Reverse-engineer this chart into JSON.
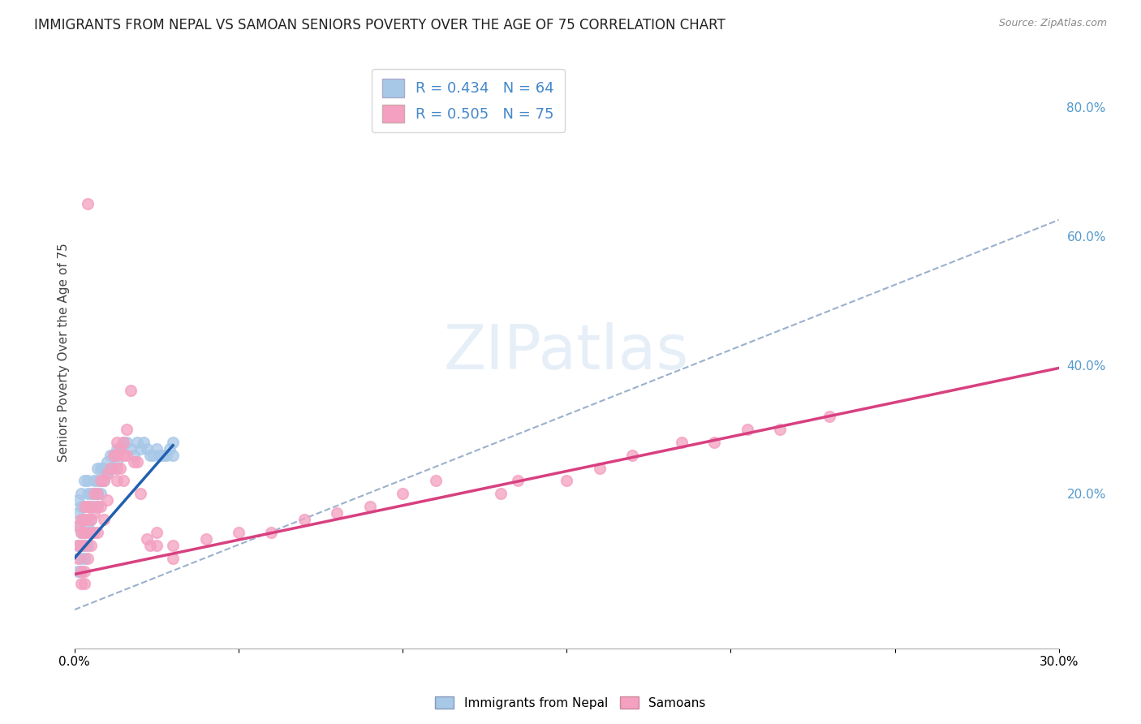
{
  "title": "IMMIGRANTS FROM NEPAL VS SAMOAN SENIORS POVERTY OVER THE AGE OF 75 CORRELATION CHART",
  "source": "Source: ZipAtlas.com",
  "ylabel": "Seniors Poverty Over the Age of 75",
  "xlim": [
    0.0,
    0.3
  ],
  "ylim": [
    -0.04,
    0.88
  ],
  "xtick_positions": [
    0.0,
    0.05,
    0.1,
    0.15,
    0.2,
    0.25,
    0.3
  ],
  "xticklabels": [
    "0.0%",
    "",
    "",
    "",
    "",
    "",
    "30.0%"
  ],
  "yticks_right": [
    0.0,
    0.2,
    0.4,
    0.6,
    0.8
  ],
  "ytick_right_labels": [
    "",
    "20.0%",
    "40.0%",
    "60.0%",
    "80.0%"
  ],
  "legend1_R": "0.434",
  "legend1_N": "64",
  "legend2_R": "0.505",
  "legend2_N": "75",
  "legend1_label": "Immigrants from Nepal",
  "legend2_label": "Samoans",
  "nepal_color": "#a8c8e8",
  "samoan_color": "#f4a0c0",
  "nepal_line_color": "#2060b0",
  "samoan_line_color": "#d84080",
  "dashed_line_color": "#7090b8",
  "nepal_line_x0": 0.0,
  "nepal_line_y0": 0.1,
  "nepal_line_x1": 0.03,
  "nepal_line_y1": 0.275,
  "samoan_line_x0": 0.0,
  "samoan_line_y0": 0.075,
  "samoan_line_x1": 0.3,
  "samoan_line_y1": 0.395,
  "dashed_line_x0": 0.0,
  "dashed_line_y0": 0.02,
  "dashed_line_x1": 0.3,
  "dashed_line_y1": 0.625,
  "nepal_x": [
    0.001,
    0.001,
    0.001,
    0.001,
    0.002,
    0.002,
    0.002,
    0.002,
    0.002,
    0.003,
    0.003,
    0.003,
    0.003,
    0.003,
    0.003,
    0.004,
    0.004,
    0.004,
    0.004,
    0.004,
    0.005,
    0.005,
    0.005,
    0.005,
    0.006,
    0.006,
    0.006,
    0.007,
    0.007,
    0.007,
    0.007,
    0.008,
    0.008,
    0.008,
    0.009,
    0.009,
    0.01,
    0.01,
    0.011,
    0.011,
    0.012,
    0.012,
    0.013,
    0.013,
    0.014,
    0.015,
    0.016,
    0.017,
    0.018,
    0.019,
    0.02,
    0.021,
    0.022,
    0.023,
    0.024,
    0.025,
    0.026,
    0.027,
    0.028,
    0.029,
    0.03,
    0.03,
    0.001,
    0.002
  ],
  "nepal_y": [
    0.15,
    0.17,
    0.19,
    0.12,
    0.16,
    0.14,
    0.18,
    0.2,
    0.1,
    0.22,
    0.18,
    0.16,
    0.14,
    0.12,
    0.1,
    0.2,
    0.22,
    0.18,
    0.15,
    0.12,
    0.2,
    0.18,
    0.16,
    0.14,
    0.22,
    0.2,
    0.18,
    0.24,
    0.22,
    0.2,
    0.18,
    0.24,
    0.22,
    0.2,
    0.24,
    0.22,
    0.25,
    0.23,
    0.26,
    0.24,
    0.26,
    0.24,
    0.27,
    0.25,
    0.27,
    0.28,
    0.28,
    0.27,
    0.26,
    0.28,
    0.27,
    0.28,
    0.27,
    0.26,
    0.26,
    0.27,
    0.26,
    0.26,
    0.26,
    0.27,
    0.28,
    0.26,
    0.08,
    0.08
  ],
  "samoan_x": [
    0.001,
    0.001,
    0.001,
    0.002,
    0.002,
    0.002,
    0.002,
    0.003,
    0.003,
    0.003,
    0.003,
    0.003,
    0.004,
    0.004,
    0.004,
    0.004,
    0.005,
    0.005,
    0.005,
    0.006,
    0.006,
    0.006,
    0.007,
    0.007,
    0.007,
    0.008,
    0.008,
    0.009,
    0.009,
    0.01,
    0.01,
    0.011,
    0.012,
    0.013,
    0.013,
    0.013,
    0.013,
    0.014,
    0.014,
    0.015,
    0.015,
    0.015,
    0.016,
    0.016,
    0.017,
    0.018,
    0.019,
    0.02,
    0.022,
    0.023,
    0.025,
    0.025,
    0.03,
    0.03,
    0.04,
    0.05,
    0.06,
    0.07,
    0.08,
    0.09,
    0.1,
    0.11,
    0.13,
    0.135,
    0.15,
    0.16,
    0.17,
    0.185,
    0.195,
    0.205,
    0.215,
    0.23,
    0.002,
    0.003,
    0.004
  ],
  "samoan_y": [
    0.15,
    0.12,
    0.1,
    0.16,
    0.14,
    0.12,
    0.08,
    0.18,
    0.16,
    0.14,
    0.12,
    0.08,
    0.18,
    0.16,
    0.14,
    0.1,
    0.18,
    0.16,
    0.12,
    0.2,
    0.17,
    0.14,
    0.2,
    0.18,
    0.14,
    0.22,
    0.18,
    0.22,
    0.16,
    0.23,
    0.19,
    0.24,
    0.26,
    0.28,
    0.26,
    0.24,
    0.22,
    0.27,
    0.24,
    0.28,
    0.26,
    0.22,
    0.3,
    0.26,
    0.36,
    0.25,
    0.25,
    0.2,
    0.13,
    0.12,
    0.14,
    0.12,
    0.12,
    0.1,
    0.13,
    0.14,
    0.14,
    0.16,
    0.17,
    0.18,
    0.2,
    0.22,
    0.2,
    0.22,
    0.22,
    0.24,
    0.26,
    0.28,
    0.28,
    0.3,
    0.3,
    0.32,
    0.06,
    0.06,
    0.65
  ],
  "background_color": "#ffffff",
  "grid_color": "#cccccc",
  "title_fontsize": 12,
  "axis_fontsize": 11
}
